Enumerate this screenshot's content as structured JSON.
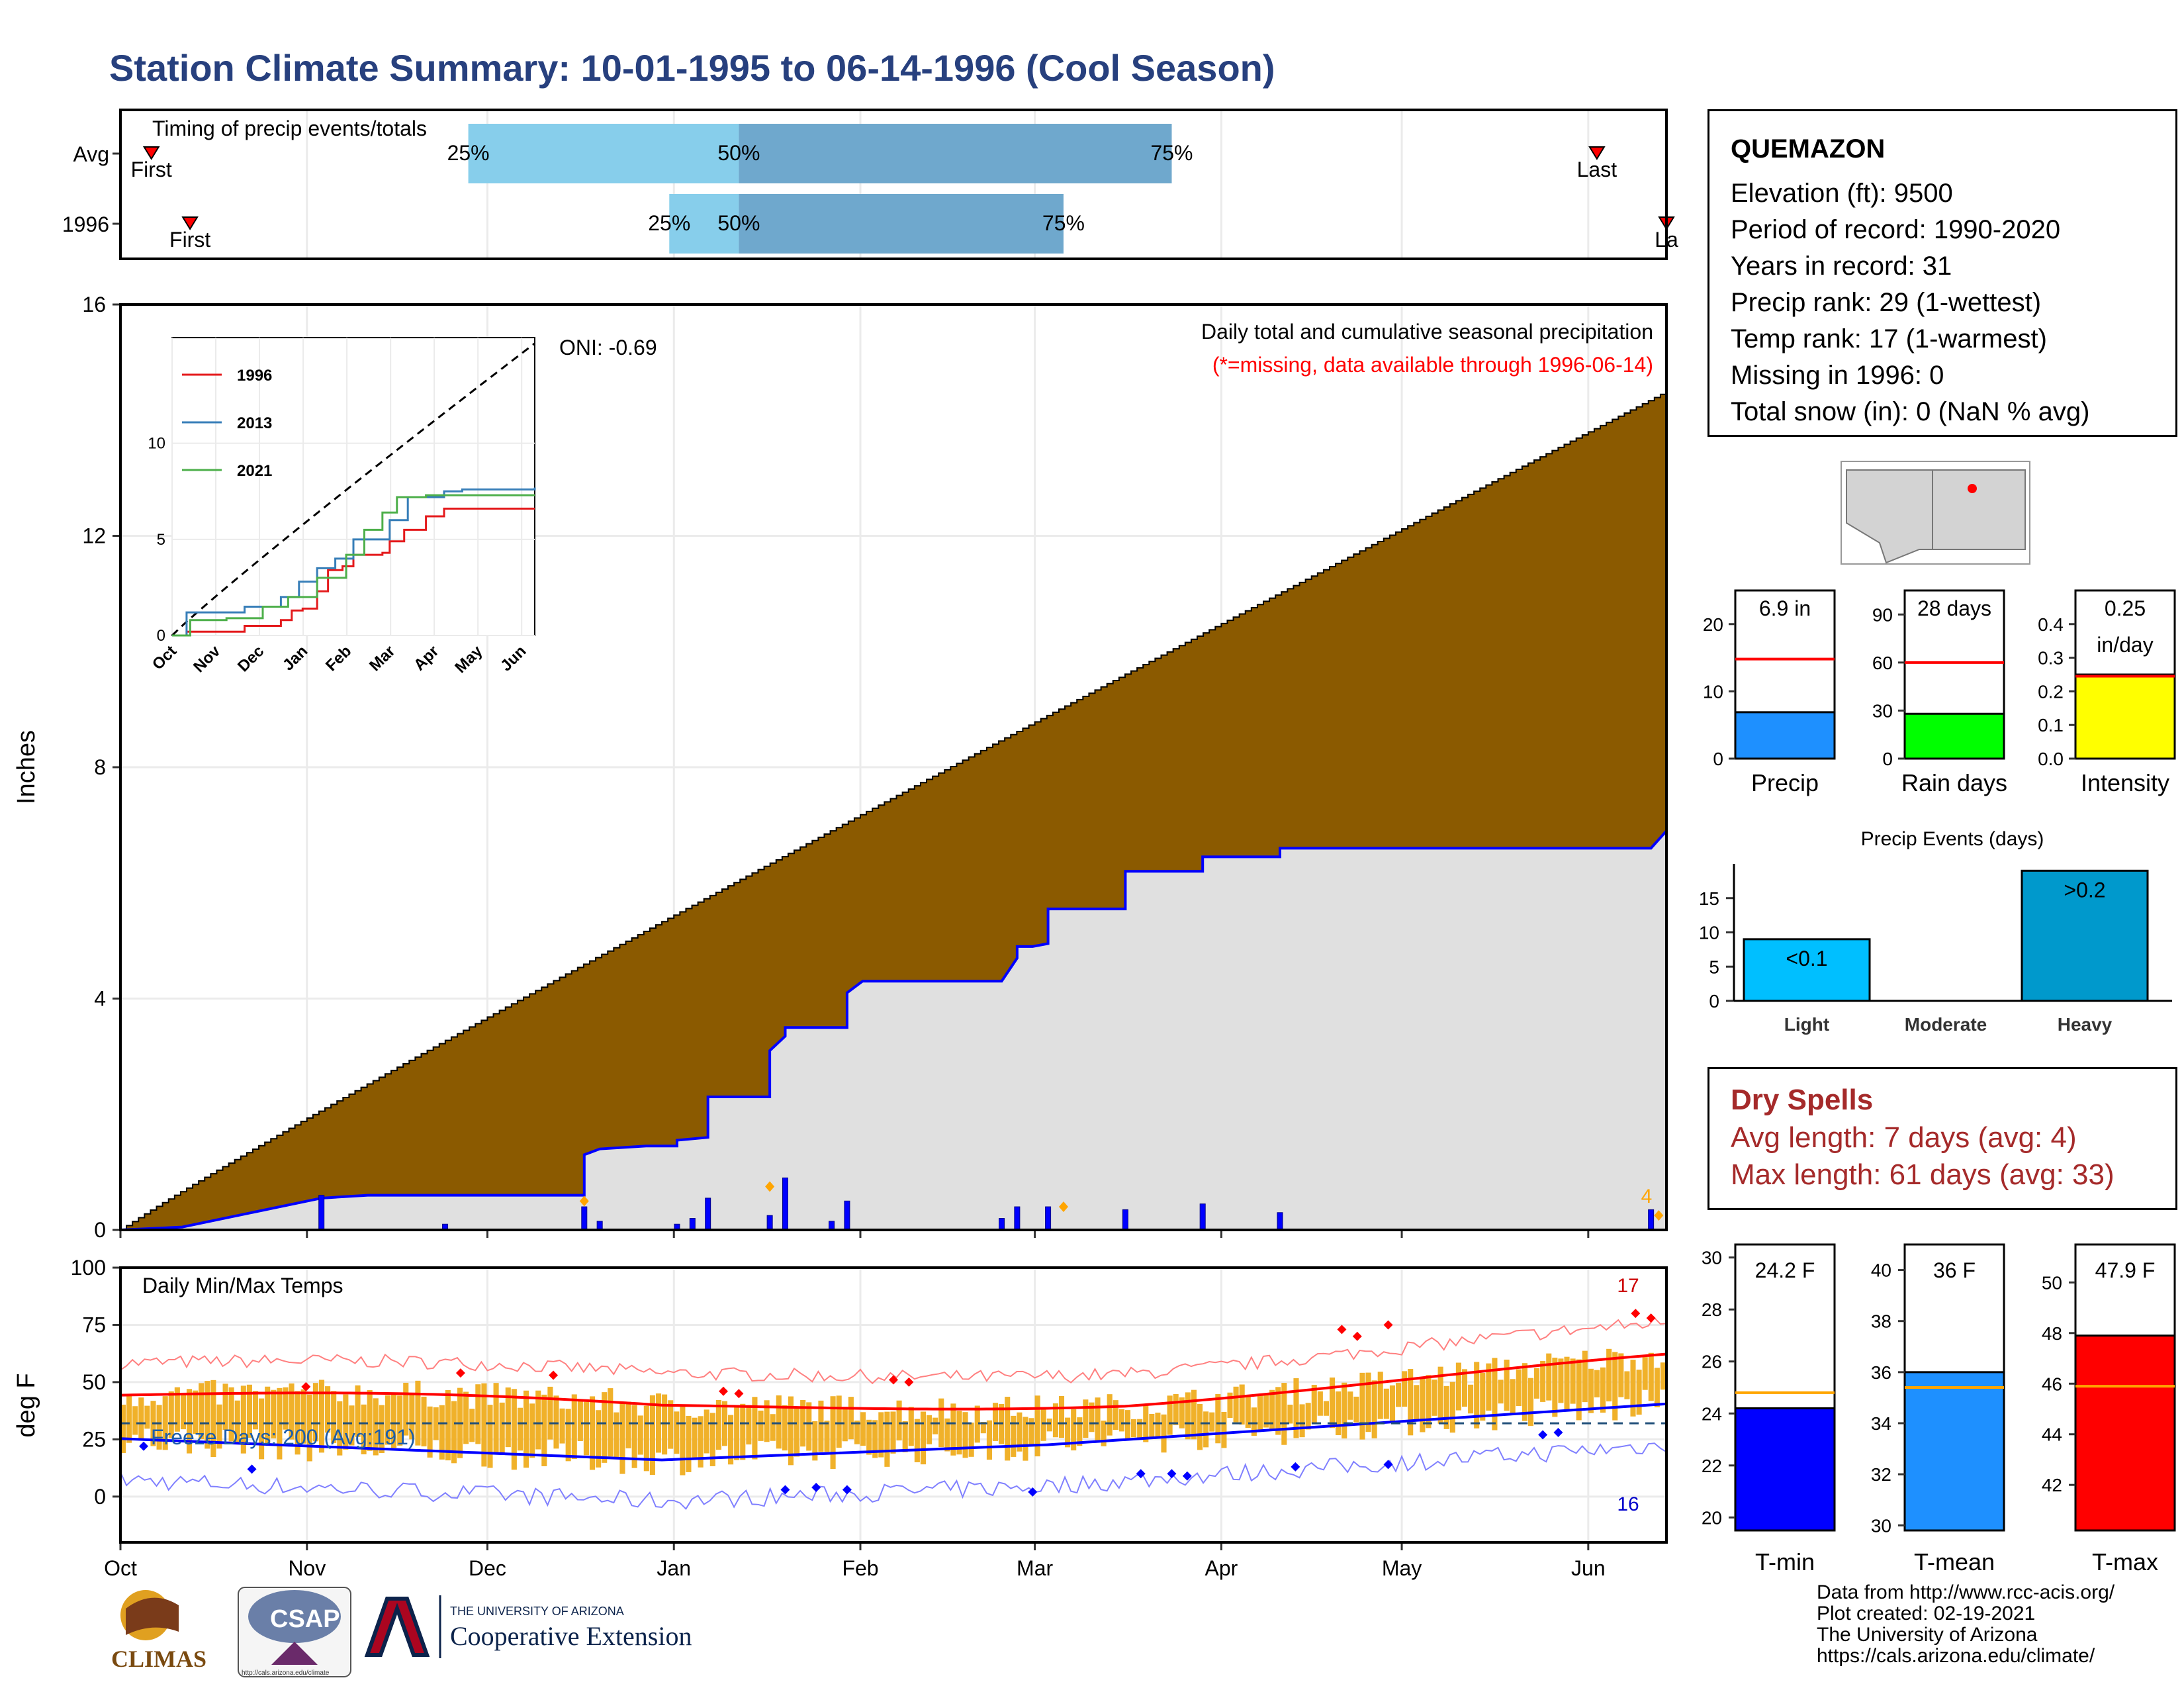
{
  "title": "Station Climate Summary: 10-01-1995 to 06-14-1996 (Cool Season)",
  "colors": {
    "title": "#27407e",
    "precip_fill": "#8b5a00",
    "normal_fill": "#e0e0e0",
    "normal_line": "#0000ff",
    "bars_light": "#87ceeb",
    "bars_dark": "#6fa8cd",
    "tmax": "#ff0000",
    "tmin": "#0000ff",
    "temp_bars": "#f0b12a",
    "dry": "#a52a2a"
  },
  "timing": {
    "label": "Timing of precip events/totals",
    "rows": [
      {
        "name": "Avg",
        "first_label": "First",
        "last_label": "Last",
        "first": 0.02,
        "p25": 0.225,
        "p50": 0.4,
        "p75": 0.68,
        "last": 0.955
      },
      {
        "name": "1996",
        "first_label": "First",
        "last_label": "La",
        "first": 0.045,
        "p25": 0.355,
        "p50": 0.4,
        "p75": 0.61,
        "last": 1.0
      }
    ],
    "pct_labels": [
      "25%",
      "50%",
      "75%"
    ]
  },
  "precip": {
    "ylabel": "Inches",
    "yticks": [
      "0",
      "4",
      "8",
      "12",
      "16"
    ],
    "ylim": [
      0,
      16
    ],
    "note1": "Daily total and cumulative seasonal precipitation",
    "note2": "(*=missing, data available through 1996-06-14)",
    "oni": "ONI: -0.69",
    "count_label": "4",
    "normal_final": 14.5,
    "observed_steps": [
      [
        0,
        0
      ],
      [
        0.04,
        0.05
      ],
      [
        0.13,
        0.55
      ],
      [
        0.16,
        0.6
      ],
      [
        0.3,
        0.6
      ],
      [
        0.3,
        0.9
      ],
      [
        0.3,
        1.3
      ],
      [
        0.31,
        1.4
      ],
      [
        0.34,
        1.45
      ],
      [
        0.36,
        1.45
      ],
      [
        0.36,
        1.55
      ],
      [
        0.38,
        1.6
      ],
      [
        0.38,
        2.3
      ],
      [
        0.42,
        2.3
      ],
      [
        0.42,
        2.55
      ],
      [
        0.42,
        3.1
      ],
      [
        0.43,
        3.35
      ],
      [
        0.43,
        3.5
      ],
      [
        0.47,
        3.5
      ],
      [
        0.47,
        3.6
      ],
      [
        0.47,
        4.1
      ],
      [
        0.48,
        4.3
      ],
      [
        0.57,
        4.3
      ],
      [
        0.57,
        4.3
      ],
      [
        0.58,
        4.7
      ],
      [
        0.58,
        4.9
      ],
      [
        0.59,
        4.9
      ],
      [
        0.6,
        4.95
      ],
      [
        0.6,
        5.45
      ],
      [
        0.6,
        5.55
      ],
      [
        0.65,
        5.55
      ],
      [
        0.65,
        5.6
      ],
      [
        0.65,
        6.2
      ],
      [
        0.7,
        6.2
      ],
      [
        0.7,
        6.3
      ],
      [
        0.7,
        6.45
      ],
      [
        0.75,
        6.45
      ],
      [
        0.75,
        6.6
      ],
      [
        0.99,
        6.6
      ],
      [
        0.99,
        6.6
      ],
      [
        1.0,
        6.9
      ]
    ]
  },
  "inset": {
    "yticks": [
      "0",
      "5",
      "10"
    ],
    "xticks": [
      "Oct",
      "Nov",
      "Dec",
      "Jan",
      "Feb",
      "Mar",
      "Apr",
      "May",
      "Jun"
    ],
    "legend": [
      {
        "name": "1996",
        "color": "#e41a1c"
      },
      {
        "name": "2013",
        "color": "#377eb8"
      },
      {
        "name": "2021",
        "color": "#4daf4a"
      }
    ]
  },
  "temps": {
    "ylabel": "deg F",
    "label": "Daily Min/Max Temps",
    "freeze": "Freeze Days: 200 (Avg:191)",
    "yticks": [
      "0",
      "25",
      "50",
      "75",
      "100"
    ],
    "ylim": [
      -20,
      100
    ],
    "hot_count": "17",
    "cold_count": "16",
    "months": [
      "Oct",
      "Nov",
      "Dec",
      "Jan",
      "Feb",
      "Mar",
      "Apr",
      "May",
      "Jun"
    ]
  },
  "station": {
    "name": "QUEMAZON",
    "rows": [
      "Elevation (ft): 9500",
      "Period of record: 1990-2020",
      "Years in record: 31",
      "Precip rank: 29 (1-wettest)",
      "Temp rank: 17 (1-warmest)",
      "Missing in 1996: 0",
      "Total snow (in): 0 (NaN % avg)"
    ]
  },
  "gauges_precip": [
    {
      "label": "Precip",
      "value_text": "6.9 in",
      "value": 6.9,
      "avg": 14.8,
      "max": 25,
      "ticks": [
        "0",
        "10",
        "20"
      ],
      "color": "#1e90ff"
    },
    {
      "label": "Rain days",
      "value_text": "28 days",
      "value": 28,
      "avg": 60,
      "max": 105,
      "ticks": [
        "0",
        "30",
        "60",
        "90"
      ],
      "color": "#00ff00"
    },
    {
      "label": "Intensity",
      "value_text": "0.25\nin/day",
      "value": 0.25,
      "avg": 0.245,
      "max": 0.5,
      "ticks": [
        "0.0",
        "0.1",
        "0.2",
        "0.3",
        "0.4"
      ],
      "color": "#ffff00"
    }
  ],
  "events": {
    "title": "Precip Events (days)",
    "categories": [
      "Light",
      "Moderate",
      "Heavy"
    ],
    "values": [
      9,
      0,
      19
    ],
    "labels": [
      "<0.1",
      "",
      ">0.2"
    ],
    "colors": [
      "#00bfff",
      "#1c86ee",
      "#0099cc"
    ],
    "yticks": [
      "0",
      "5",
      "10",
      "15"
    ]
  },
  "dry": {
    "title": "Dry Spells",
    "avg": "Avg length: 7 days (avg: 4)",
    "max": "Max length: 61 days (avg: 33)"
  },
  "gauges_temp": [
    {
      "label": "T-min",
      "value_text": "24.2 F",
      "value": 24.2,
      "avg": 24.8,
      "min": 19.5,
      "max": 30.5,
      "ticks": [
        "20",
        "22",
        "24",
        "26",
        "28",
        "30"
      ],
      "color": "#0000ff"
    },
    {
      "label": "T-mean",
      "value_text": "36 F",
      "value": 36.0,
      "avg": 35.4,
      "min": 29.8,
      "max": 41.0,
      "ticks": [
        "30",
        "32",
        "34",
        "36",
        "38",
        "40"
      ],
      "color": "#1e90ff"
    },
    {
      "label": "T-max",
      "value_text": "47.9 F",
      "value": 47.9,
      "avg": 45.9,
      "min": 40.2,
      "max": 51.5,
      "ticks": [
        "42",
        "44",
        "46",
        "48",
        "50"
      ],
      "color": "#ff0000"
    }
  ],
  "footer": [
    "Data from http://www.rcc-acis.org/",
    "Plot created: 02-19-2021",
    "The University of Arizona",
    "https://cals.arizona.edu/climate/"
  ],
  "logos": {
    "climas": "CLIMAS",
    "csap": "CSAP",
    "ua_small": "THE UNIVERSITY OF ARIZONA",
    "ua_big": "Cooperative Extension",
    "csap_url": "http://cals.arizona.edu/climate"
  }
}
